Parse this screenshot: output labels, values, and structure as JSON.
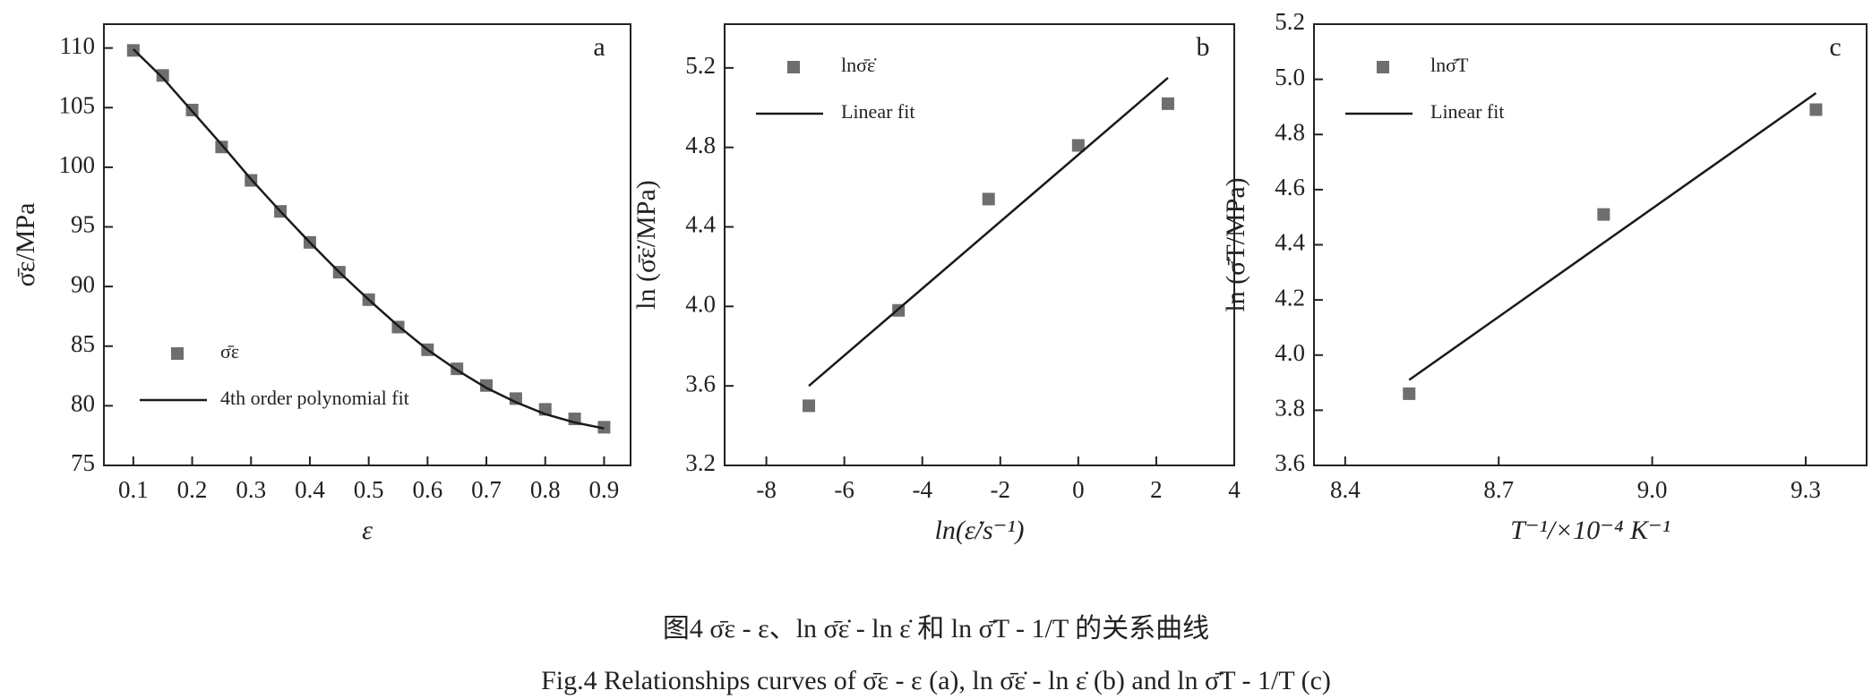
{
  "chart_data": [
    {
      "type": "scatter",
      "panel": "a",
      "xlabel": "ε",
      "ylabel": "σ̄ε/MPa",
      "legend": "lower left",
      "xlim": [
        0.05,
        0.945
      ],
      "ylim": [
        75,
        112
      ],
      "xticks": [
        0.1,
        0.2,
        0.3,
        0.4,
        0.5,
        0.6,
        0.7,
        0.8,
        0.9
      ],
      "yticks": [
        75,
        80,
        85,
        90,
        95,
        100,
        105,
        110
      ],
      "series": [
        {
          "name": "σ̄ε",
          "type": "scatter",
          "color": "#6e6e6e",
          "x": [
            0.1,
            0.15,
            0.2,
            0.25,
            0.3,
            0.35,
            0.4,
            0.45,
            0.5,
            0.55,
            0.6,
            0.65,
            0.7,
            0.75,
            0.8,
            0.85,
            0.9
          ],
          "values": [
            109.8,
            107.7,
            104.8,
            101.7,
            98.9,
            96.3,
            93.7,
            91.2,
            88.9,
            86.6,
            84.7,
            83.1,
            81.7,
            80.6,
            79.7,
            78.9,
            78.2
          ]
        },
        {
          "name": "4th order polynomial fit",
          "type": "line",
          "color": "#1a1a1a",
          "x": [
            0.1,
            0.15,
            0.2,
            0.25,
            0.3,
            0.35,
            0.4,
            0.45,
            0.5,
            0.55,
            0.6,
            0.65,
            0.7,
            0.75,
            0.8,
            0.85,
            0.9
          ],
          "values": [
            109.9,
            107.5,
            104.7,
            101.9,
            99.0,
            96.3,
            93.7,
            91.2,
            88.9,
            86.7,
            84.7,
            83.0,
            81.5,
            80.3,
            79.3,
            78.6,
            78.1
          ]
        }
      ]
    },
    {
      "type": "scatter",
      "panel": "b",
      "xlabel": "ln(ε̇/s⁻¹)",
      "ylabel": "ln (σ̄ε̇/MPa)",
      "legend": "upper left",
      "xlim": [
        -9.07,
        4
      ],
      "ylim": [
        3.2,
        5.42
      ],
      "xticks": [
        -8,
        -6,
        -4,
        -2,
        0,
        2,
        4
      ],
      "yticks": [
        3.2,
        3.6,
        {
          "value": 4,
          "label": "4.0"
        },
        4.4,
        4.8,
        5.2
      ],
      "series": [
        {
          "name": "lnσ̄ε̇",
          "type": "scatter",
          "color": "#6e6e6e",
          "x": [
            -6.91,
            -4.61,
            -2.3,
            0,
            2.3
          ],
          "values": [
            3.5,
            3.98,
            4.54,
            4.81,
            5.02
          ]
        },
        {
          "name": "Linear fit",
          "type": "line",
          "color": "#1a1a1a",
          "x": [
            -6.91,
            2.3
          ],
          "values": [
            3.6,
            5.15
          ]
        }
      ]
    },
    {
      "type": "scatter",
      "panel": "c",
      "xlabel": "T⁻¹/×10⁻⁴ K⁻¹",
      "ylabel": "ln (σ̄T/MPa)",
      "legend": "upper left",
      "xlim": [
        8.339,
        9.419
      ],
      "ylim": [
        3.6,
        5.2
      ],
      "xticks": [
        8.4,
        8.7,
        {
          "value": 9,
          "label": "9.0"
        },
        9.3
      ],
      "yticks": [
        3.6,
        3.8,
        {
          "value": 4,
          "label": "4.0"
        },
        4.2,
        4.4,
        4.6,
        4.8,
        {
          "value": 5,
          "label": "5.0"
        },
        5.2
      ],
      "series": [
        {
          "name": "lnσ̄T",
          "type": "scatter",
          "color": "#6e6e6e",
          "x": [
            8.525,
            8.905,
            9.32
          ],
          "values": [
            3.86,
            4.51,
            4.89
          ]
        },
        {
          "name": "Linear fit",
          "type": "line",
          "color": "#1a1a1a",
          "x": [
            8.525,
            9.32
          ],
          "values": [
            3.91,
            4.95
          ]
        }
      ]
    }
  ],
  "caption": {
    "zh": "图4  σ̄ε - ε、ln σ̄ε̇ - ln ε̇ 和 ln σ̄T - 1/T 的关系曲线",
    "en": "Fig.4  Relationships curves of σ̄ε - ε (a), ln σ̄ε̇ - ln ε̇ (b) and ln σ̄T - 1/T (c)"
  }
}
